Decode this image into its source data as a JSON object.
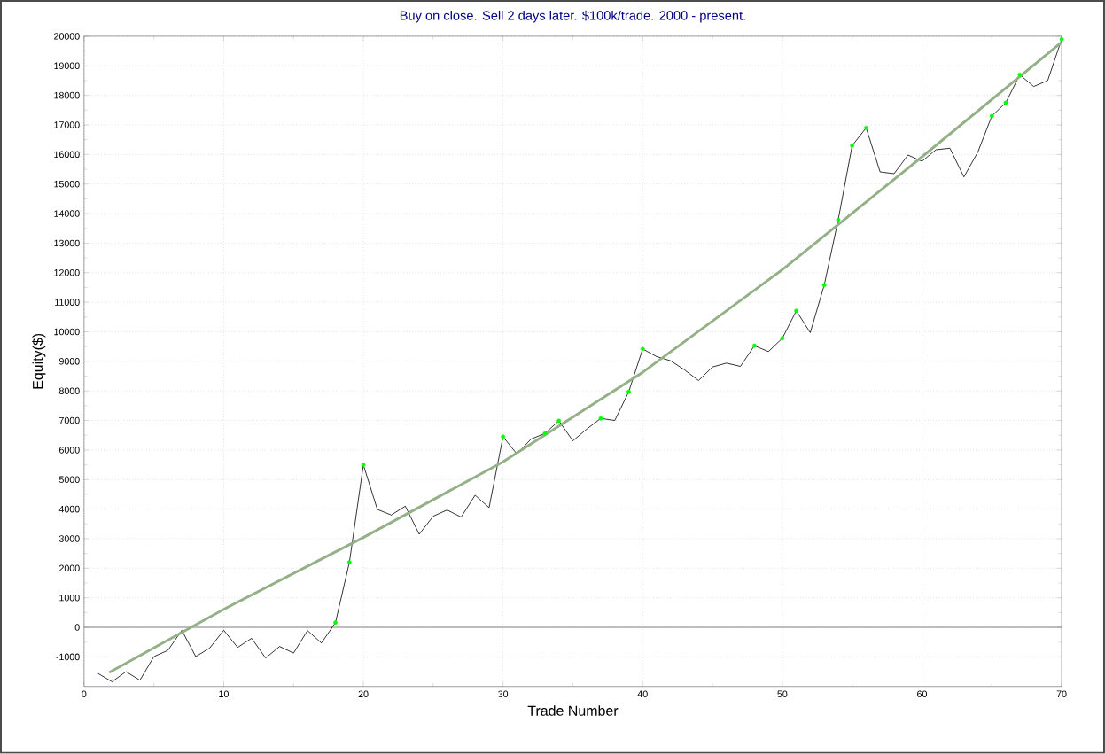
{
  "chart_data": {
    "type": "line",
    "title": "Buy on close. Sell 2 days later. $100k/trade. 2000 - present.",
    "xlabel": "Trade Number",
    "ylabel": "Equity($)",
    "xlim": [
      0,
      70
    ],
    "xticks": [
      0,
      10,
      20,
      30,
      40,
      50,
      60,
      70
    ],
    "ylim": [
      -2000,
      20000
    ],
    "yticks": [
      -1000,
      0,
      1000,
      2000,
      3000,
      4000,
      5000,
      6000,
      7000,
      8000,
      9000,
      10000,
      11000,
      12000,
      13000,
      14000,
      15000,
      16000,
      17000,
      18000,
      19000,
      20000
    ],
    "grid": true,
    "ref_lines": [
      {
        "axis": "y",
        "value": 0,
        "color": "#808080"
      }
    ],
    "series": [
      {
        "color": "#000000",
        "marker": "none",
        "x": [
          1,
          2,
          3,
          4,
          5,
          6,
          7,
          8,
          9,
          10,
          11,
          12,
          13,
          14,
          15,
          16,
          17,
          18,
          19,
          20,
          21,
          22,
          23,
          24,
          25,
          26,
          27,
          28,
          29,
          30,
          31,
          32,
          33,
          34,
          35,
          36,
          37,
          38,
          39,
          40,
          41,
          42,
          43,
          44,
          45,
          46,
          47,
          48,
          49,
          50,
          51,
          52,
          53,
          54,
          55,
          56,
          57,
          58,
          59,
          60,
          61,
          62,
          63,
          64,
          65,
          66,
          67,
          68,
          69,
          70
        ],
        "values": [
          -1560,
          -1840,
          -1500,
          -1790,
          -990,
          -780,
          -100,
          -990,
          -700,
          -100,
          -680,
          -370,
          -1040,
          -650,
          -870,
          -110,
          -530,
          160,
          2200,
          5500,
          3990,
          3800,
          4100,
          3150,
          3760,
          3970,
          3730,
          4470,
          4050,
          6450,
          5860,
          6370,
          6560,
          6990,
          6310,
          6710,
          7070,
          7000,
          7970,
          9420,
          9160,
          9020,
          8710,
          8350,
          8810,
          8940,
          8830,
          9530,
          9330,
          9780,
          10710,
          9970,
          11580,
          13790,
          16300,
          16900,
          15410,
          15350,
          15980,
          15770,
          16160,
          16210,
          15240,
          16080,
          17300,
          17750,
          18700,
          18300,
          18500,
          19900
        ]
      },
      {
        "type": "scatter",
        "color": "#00ff00",
        "marker": "circle",
        "x": [
          18,
          19,
          20,
          30,
          33,
          34,
          37,
          39,
          40,
          48,
          50,
          51,
          53,
          54,
          55,
          56,
          65,
          66,
          67,
          70
        ],
        "values": [
          160,
          2200,
          5500,
          6450,
          6560,
          6990,
          7070,
          7970,
          9420,
          9530,
          9780,
          10710,
          11580,
          13790,
          16300,
          16900,
          17300,
          17750,
          18700,
          19900
        ]
      },
      {
        "type": "line",
        "color": "#93b086",
        "marker": "none",
        "x": [
          1.8,
          10,
          20,
          30,
          40,
          50,
          60,
          70
        ],
        "values": [
          -1530,
          610,
          3040,
          5600,
          8630,
          12100,
          15920,
          19800
        ]
      }
    ]
  }
}
